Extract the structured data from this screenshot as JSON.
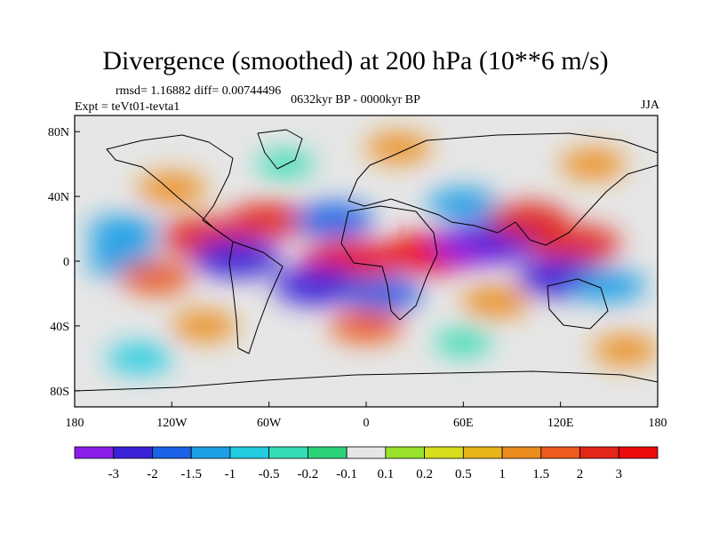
{
  "chart_data": {
    "type": "heatmap",
    "title": "Divergence (smoothed) at 200 hPa (10**6 m/s)",
    "stats_label": "rmsd= 1.16882 diff= 0.00744496",
    "experiment_label": "Expt = teVt01-tevta1",
    "period_label": "0632kyr BP - 0000kyr BP",
    "season_label": "JJA",
    "x_ticks": [
      {
        "lon": -180,
        "label": "180"
      },
      {
        "lon": -120,
        "label": "120W"
      },
      {
        "lon": -60,
        "label": "60W"
      },
      {
        "lon": 0,
        "label": "0"
      },
      {
        "lon": 60,
        "label": "60E"
      },
      {
        "lon": 120,
        "label": "120E"
      },
      {
        "lon": 180,
        "label": "180"
      }
    ],
    "y_ticks": [
      {
        "lat": 80,
        "label": "80N"
      },
      {
        "lat": 40,
        "label": "40N"
      },
      {
        "lat": 0,
        "label": "0"
      },
      {
        "lat": -40,
        "label": "40S"
      },
      {
        "lat": -80,
        "label": "80S"
      }
    ],
    "lon_range": [
      -180,
      180
    ],
    "lat_range": [
      -90,
      90
    ],
    "colorbar": {
      "labels": [
        "-3",
        "-2",
        "-1.5",
        "-1",
        "-0.5",
        "-0.2",
        "-0.1",
        "0.1",
        "0.2",
        "0.5",
        "1",
        "1.5",
        "2",
        "3"
      ],
      "colors": [
        "#8a1ee8",
        "#3a22d8",
        "#1a62e6",
        "#1c9fe6",
        "#22cce0",
        "#36dcb6",
        "#2cd27a",
        "#e6e6e6",
        "#98e22c",
        "#d6de1e",
        "#e8b41a",
        "#ec8c1e",
        "#ec5a1c",
        "#e2261a",
        "#ea0a0a"
      ]
    },
    "features": [
      {
        "lon": -120,
        "lat": 45,
        "value": 1.2
      },
      {
        "lon": -100,
        "lat": 15,
        "value": 2.5
      },
      {
        "lon": -150,
        "lat": 18,
        "value": -1.5
      },
      {
        "lon": -150,
        "lat": 0,
        "value": -1.5
      },
      {
        "lon": -130,
        "lat": -10,
        "value": 1.5
      },
      {
        "lon": -80,
        "lat": 2,
        "value": -2.5
      },
      {
        "lon": -60,
        "lat": 25,
        "value": 2.0
      },
      {
        "lon": -20,
        "lat": 25,
        "value": -2.0
      },
      {
        "lon": -10,
        "lat": 0,
        "value": 3.2
      },
      {
        "lon": -30,
        "lat": -15,
        "value": -2.5
      },
      {
        "lon": 10,
        "lat": -20,
        "value": -2.0
      },
      {
        "lon": 40,
        "lat": 5,
        "value": 3.2
      },
      {
        "lon": 70,
        "lat": 10,
        "value": -3.2
      },
      {
        "lon": 90,
        "lat": 15,
        "value": -2.5
      },
      {
        "lon": 60,
        "lat": 35,
        "value": -1.5
      },
      {
        "lon": 100,
        "lat": 25,
        "value": 2.0
      },
      {
        "lon": 130,
        "lat": 10,
        "value": 2.5
      },
      {
        "lon": 120,
        "lat": -10,
        "value": -2.5
      },
      {
        "lon": 150,
        "lat": -15,
        "value": -1.5
      },
      {
        "lon": 80,
        "lat": -25,
        "value": 1.2
      },
      {
        "lon": 0,
        "lat": -40,
        "value": 1.5
      },
      {
        "lon": -100,
        "lat": -40,
        "value": 1.0
      },
      {
        "lon": 60,
        "lat": -50,
        "value": -0.5
      },
      {
        "lon": -140,
        "lat": -60,
        "value": -1.0
      },
      {
        "lon": 160,
        "lat": -55,
        "value": 1.0
      },
      {
        "lon": 140,
        "lat": 60,
        "value": 1.0
      },
      {
        "lon": -50,
        "lat": 60,
        "value": -0.5
      },
      {
        "lon": 20,
        "lat": 70,
        "value": 1.0
      }
    ]
  }
}
